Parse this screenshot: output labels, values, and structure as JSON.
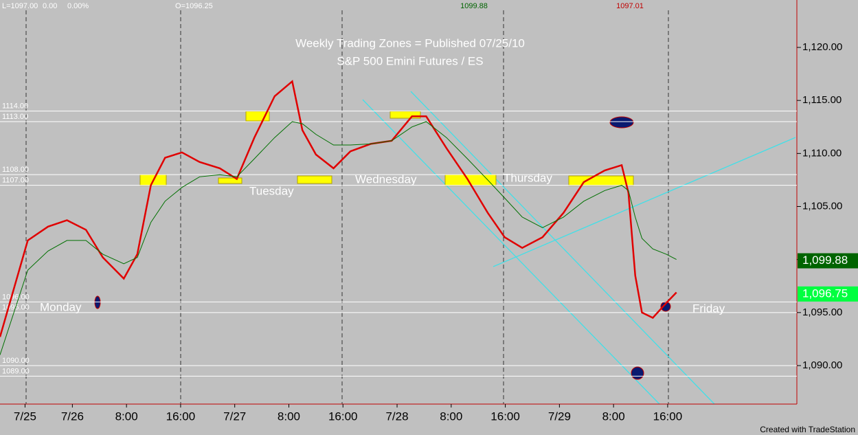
{
  "chart_data": {
    "type": "line",
    "title": "Weekly Trading Zones = Published 07/25/10",
    "subtitle": "S&P 500 Emini Futures / ES",
    "status": [
      "L=1097.00",
      "0.00",
      "0.00%",
      "O=1096.25"
    ],
    "high_label": "1099.88",
    "low_label": "1097.01",
    "footer": "Created with TradeStation",
    "day_labels": [
      "Monday",
      "Tuesday",
      "Wednesday",
      "Thursday",
      "Friday"
    ],
    "x": [
      -10.7,
      -6.6,
      -3.6,
      -0.8,
      2.0,
      4.5,
      7.6,
      9.6,
      11.6,
      13.7,
      16.2,
      18.8,
      21.8,
      24.3,
      26.9,
      29.9,
      32.5,
      34.0,
      36.0,
      38.6,
      41.1,
      44.1,
      47.2,
      50.2,
      52.3,
      55.3,
      58.4,
      61.4,
      63.9,
      66.5,
      69.5,
      72.6,
      75.6,
      78.7,
      81.2,
      82.2,
      83.2,
      84.2,
      85.8,
      87.8,
      89.3
    ],
    "series": [
      {
        "color": "#e00000",
        "values": [
          1092.7,
          1101.8,
          1103.1,
          1103.7,
          1102.8,
          1100.2,
          1098.2,
          1100.5,
          1107.0,
          1109.6,
          1110.1,
          1109.2,
          1108.6,
          1107.6,
          1111.5,
          1115.4,
          1116.8,
          1112.2,
          1109.9,
          1108.6,
          1110.2,
          1110.9,
          1111.2,
          1113.5,
          1113.5,
          1110.5,
          1107.6,
          1104.4,
          1102.1,
          1101.1,
          1102.1,
          1104.4,
          1107.3,
          1108.4,
          1108.9,
          1106.3,
          1098.5,
          1095.0,
          1094.5,
          1095.9,
          1096.9
        ]
      },
      {
        "color": "#007000",
        "values": [
          1091.0,
          1099.0,
          1100.8,
          1101.8,
          1101.8,
          1100.5,
          1099.6,
          1100.2,
          1103.5,
          1105.5,
          1106.8,
          1107.8,
          1108.0,
          1107.8,
          1109.5,
          1111.5,
          1113.0,
          1112.8,
          1111.8,
          1110.8,
          1110.8,
          1110.9,
          1111.2,
          1112.5,
          1113.0,
          1111.5,
          1109.5,
          1107.5,
          1105.8,
          1104.0,
          1103.0,
          1104.0,
          1105.5,
          1106.5,
          1107.0,
          1106.5,
          1104.0,
          1102.0,
          1101.0,
          1100.5,
          1100.0
        ]
      }
    ],
    "xlim": [
      -10.7,
      107.1
    ],
    "xticks": [
      {
        "value": -7,
        "label": "7/25"
      },
      {
        "value": 0,
        "label": "7/26"
      },
      {
        "value": 8,
        "label": "8:00"
      },
      {
        "value": 16,
        "label": "16:00"
      },
      {
        "value": 24,
        "label": "7/27"
      },
      {
        "value": 32,
        "label": "8:00"
      },
      {
        "value": 40,
        "label": "16:00"
      },
      {
        "value": 48,
        "label": "7/28"
      },
      {
        "value": 56,
        "label": "8:00"
      },
      {
        "value": 64,
        "label": "16:00"
      },
      {
        "value": 72,
        "label": "7/29"
      },
      {
        "value": 80,
        "label": "8:00"
      },
      {
        "value": 88,
        "label": "16:00"
      }
    ],
    "ylim": [
      1086.37,
      1124.47
    ],
    "yticks": [
      {
        "value": 1090,
        "label": "1,090.00"
      },
      {
        "value": 1095,
        "label": "1,095.00"
      },
      {
        "value": 1100,
        "label": "1,100.00"
      },
      {
        "value": 1105,
        "label": "1,105.00"
      },
      {
        "value": 1110,
        "label": "1,110.00"
      },
      {
        "value": 1115,
        "label": "1,115.00"
      },
      {
        "value": 1120,
        "label": "1,120.00"
      }
    ],
    "zones": [
      {
        "value": 1114,
        "label": "1114.00"
      },
      {
        "value": 1113,
        "label": "1113.00"
      },
      {
        "value": 1108,
        "label": "1108.00"
      },
      {
        "value": 1107,
        "label": "1107.00"
      },
      {
        "value": 1096,
        "label": "1096.00"
      },
      {
        "value": 1095,
        "label": "1095.00"
      },
      {
        "value": 1090,
        "label": "1090.00"
      },
      {
        "value": 1089,
        "label": "1089.00"
      }
    ],
    "price_labels": [
      {
        "value": 1099.88,
        "label": "1,099.88",
        "color": "#006400"
      },
      {
        "value": 1096.75,
        "label": "1,096.75",
        "color": "#00ff40"
      }
    ]
  }
}
